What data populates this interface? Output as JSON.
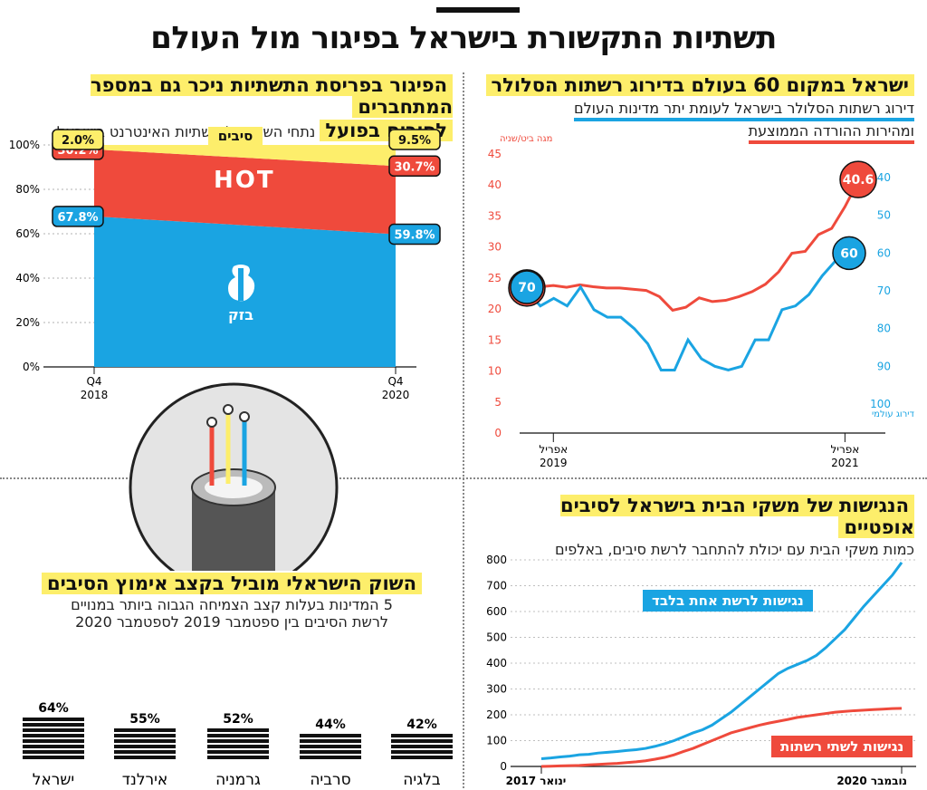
{
  "page": {
    "title": "תשתיות התקשורת בישראל בפיגור מול העולם"
  },
  "panel_market": {
    "title_line1": "הפיגור בפריסת התשתיות ניכר גם במספר המתחברים",
    "title_line2": "לסיבים בפועל",
    "subtitle": "נתחי השוק של תשתיות האינטרנט בישראל",
    "fiber_label": "סיבים",
    "bezeq_label": "בזק",
    "hot_label": "HOT"
  },
  "panel_cellular": {
    "title": "ישראל במקום 60 בעולם בדירוג רשתות הסלולר",
    "legend_blue": "דירוג רשתות הסלולר בישראל לעומת יתר מדינות העולם",
    "legend_red": "ומהירות ההורדה הממוצעת",
    "left_axis_unit": "מגה ביט/שניה",
    "right_axis_unit": "דירוג עולמי"
  },
  "panel_fiber_race": {
    "title": "השוק הישראלי מוביל בקצב אימוץ הסיבים",
    "subtitle_line1": "5 המדינות בעלות קצב הצמיחה הגבוה ביותר במנויים",
    "subtitle_line2": "לרשת הסיבים בין ספטמבר 2019 לספטמבר 2020"
  },
  "panel_households": {
    "title": "הנגישות של משקי הבית בישראל לסיבים אופטיים",
    "subtitle": "כמות משקי הבית עם יכולת להתחבר לרשת סיבים, באלפים",
    "label_one": "נגישות לרשת אחת בלבד",
    "label_two": "נגישות לשתי רשתות"
  },
  "chart_data": [
    {
      "type": "area",
      "title": "נתחי השוק של תשתיות האינטרנט בישראל",
      "x": [
        "Q4 2018",
        "Q4 2020"
      ],
      "x_ticks": [
        {
          "top": "Q4",
          "bottom": "2018"
        },
        {
          "top": "Q4",
          "bottom": "2020"
        }
      ],
      "y_ticks": [
        "0%",
        "20%",
        "40%",
        "60%",
        "80%",
        "100%"
      ],
      "ylim": [
        0,
        100
      ],
      "stacked": true,
      "series": [
        {
          "name": "בזק",
          "values": [
            67.8,
            59.8
          ],
          "labels": [
            "67.8%",
            "59.8%"
          ],
          "color": "#1aa4e2"
        },
        {
          "name": "HOT",
          "values": [
            30.2,
            30.7
          ],
          "labels": [
            "30.2%",
            "30.7%"
          ],
          "color": "#ef4a3c"
        },
        {
          "name": "סיבים",
          "values": [
            2.0,
            9.5
          ],
          "labels": [
            "2.0%",
            "9.5%"
          ],
          "color": "#fdee6b"
        }
      ]
    },
    {
      "type": "line",
      "title": "ישראל במקום 60 בעולם בדירוג רשתות הסלולר",
      "x_ticks": [
        {
          "top": "אפריל",
          "bottom": "2019"
        },
        {
          "top": "אפריל",
          "bottom": "2021"
        }
      ],
      "x_tick_positions": [
        2,
        24
      ],
      "left_axis": {
        "ticks": [
          "0",
          "5",
          "10",
          "15",
          "20",
          "25",
          "30",
          "35",
          "40",
          "45"
        ],
        "ylim": [
          0,
          45
        ],
        "unit": "מגה ביט/שניה"
      },
      "right_axis": {
        "ticks": [
          "40",
          "50",
          "60",
          "70",
          "80",
          "90",
          "100"
        ],
        "ylim": [
          100,
          40
        ],
        "inverted": true,
        "unit": "דירוג עולמי"
      },
      "series": [
        {
          "name": "מהירות הורדה ממוצעת",
          "axis": "left",
          "color": "#ef4a3c",
          "values": [
            23.4,
            23.6,
            23.8,
            23.5,
            23.9,
            23.6,
            23.4,
            23.4,
            23.2,
            23.0,
            22.0,
            19.8,
            20.3,
            21.8,
            21.2,
            21.4,
            22.0,
            22.8,
            24.0,
            26.0,
            29.0,
            29.3,
            32.0,
            33.0,
            36.5,
            40.6
          ],
          "start_label": "23.4",
          "end_label": "40.6"
        },
        {
          "name": "דירוג עולמי",
          "axis": "right",
          "color": "#1aa4e2",
          "values": [
            70,
            74,
            72,
            74,
            69,
            75,
            77,
            77,
            80,
            84,
            91,
            91,
            83,
            88,
            90,
            91,
            90,
            83,
            83,
            75,
            74,
            71,
            66,
            62,
            60
          ],
          "start_label": "70",
          "end_label": "60"
        }
      ]
    },
    {
      "type": "bar",
      "title": "השוק הישראלי מוביל בקצב אימוץ הסיבים",
      "categories": [
        "ישראל",
        "אירלנד",
        "גרמניה",
        "סרביה",
        "בלגיה"
      ],
      "values": [
        64,
        55,
        52,
        44,
        42
      ],
      "labels": [
        "64%",
        "55%",
        "52%",
        "44%",
        "42%"
      ]
    },
    {
      "type": "line",
      "title": "הנגישות של משקי הבית בישראל לסיבים אופטיים",
      "x_ticks": [
        {
          "label": "ינואר 2017"
        },
        {
          "label": "נובמבר 2020"
        }
      ],
      "y_ticks": [
        "0",
        "100",
        "200",
        "300",
        "400",
        "500",
        "600",
        "700",
        "800"
      ],
      "ylim": [
        0,
        800
      ],
      "series": [
        {
          "name": "נגישות לרשת אחת בלבד",
          "color": "#1aa4e2",
          "values": [
            30,
            33,
            37,
            40,
            45,
            47,
            52,
            55,
            58,
            62,
            65,
            70,
            78,
            88,
            100,
            115,
            130,
            142,
            160,
            185,
            210,
            240,
            270,
            300,
            330,
            360,
            380,
            395,
            410,
            430,
            460,
            495,
            530,
            575,
            620,
            660,
            700,
            740,
            790
          ]
        },
        {
          "name": "נגישות לשתי רשתות",
          "color": "#ef4a3c",
          "values": [
            0,
            1,
            2,
            3,
            4,
            6,
            8,
            10,
            12,
            15,
            18,
            22,
            28,
            35,
            45,
            58,
            70,
            85,
            100,
            115,
            130,
            140,
            150,
            160,
            168,
            175,
            182,
            190,
            195,
            200,
            205,
            210,
            213,
            216,
            218,
            220,
            222,
            224,
            225
          ]
        }
      ]
    }
  ]
}
